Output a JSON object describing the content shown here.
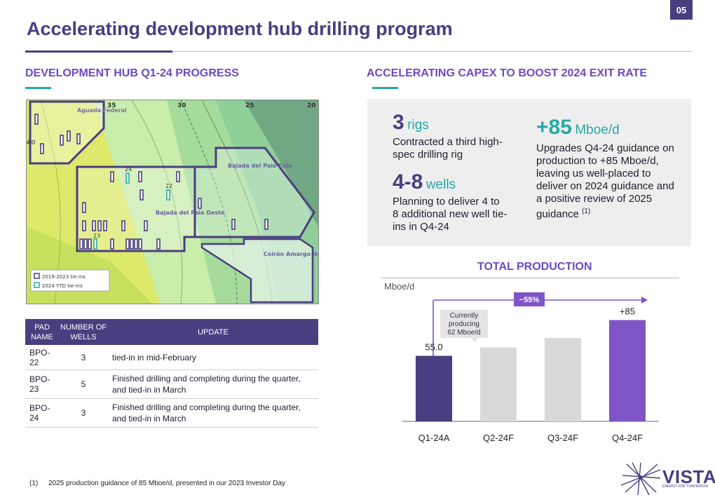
{
  "page": {
    "number": "05",
    "title": "Accelerating development hub drilling program"
  },
  "left": {
    "heading": "DEVELOPMENT HUB Q1-24 PROGRESS"
  },
  "map": {
    "grid_labels": [
      "35",
      "30",
      "25",
      "20",
      "40"
    ],
    "blocks": [
      "Aguada Federal",
      "Bajada del Palo Este",
      "Bajada del Palo Oeste",
      "Coirón Amargo Norte"
    ],
    "pad_labels": [
      "24",
      "22",
      "23"
    ],
    "legend": [
      "2019-2023 tie-ins",
      "2024 YTD tie-ins"
    ]
  },
  "table": {
    "headers": [
      "PAD NAME",
      "NUMBER OF WELLS",
      "UPDATE"
    ],
    "rows": [
      {
        "pad": "BPO-22",
        "wells": "3",
        "update": "tied-in in mid-February"
      },
      {
        "pad": "BPO-23",
        "wells": "5",
        "update": "Finished drilling and completing during the quarter, and tied-in in March"
      },
      {
        "pad": "BPO-24",
        "wells": "3",
        "update": "Finished drilling and completing during the quarter, and tied-in in March"
      }
    ]
  },
  "right": {
    "heading": "ACCELERATING CAPEX TO BOOST 2024 EXIT RATE"
  },
  "kpis": {
    "rigs": {
      "value": "3",
      "unit": "rigs",
      "desc": "Contracted a third high-spec drilling rig"
    },
    "wells": {
      "value": "4-8",
      "unit": "wells",
      "desc": "Planning to deliver 4 to 8 additional new well tie-ins in Q4-24"
    },
    "mboe": {
      "value": "+85",
      "unit": "Mboe/d",
      "desc": "Upgrades Q4-24 guidance on production to +85 Mboe/d, leaving us well-placed to deliver on 2024 guidance and a positive review of 2025 guidance",
      "note": "(1)"
    }
  },
  "chart_data": {
    "type": "bar",
    "title": "TOTAL PRODUCTION",
    "ylabel": "Mboe/d",
    "categories": [
      "Q1-24A",
      "Q2-24F",
      "Q3-24F",
      "Q4-24F"
    ],
    "values": [
      55.0,
      62,
      70,
      85
    ],
    "data_labels": [
      "55.0",
      "",
      "",
      "+85"
    ],
    "growth_label": "~55%",
    "callout": "Currently producing 62 Mboe/d",
    "ylim": [
      0,
      100
    ],
    "colors": [
      "#4a3d80",
      "#d9d9dc",
      "#d9d9dc",
      "#7f55c6"
    ]
  },
  "footnote": {
    "num": "(1)",
    "text": "2025 production guidance of 85 Mboe/d, presented in our 2023 Investor Day"
  },
  "logo": {
    "name": "VISTA",
    "tagline": "ENERGY FOR TOMORROW"
  }
}
